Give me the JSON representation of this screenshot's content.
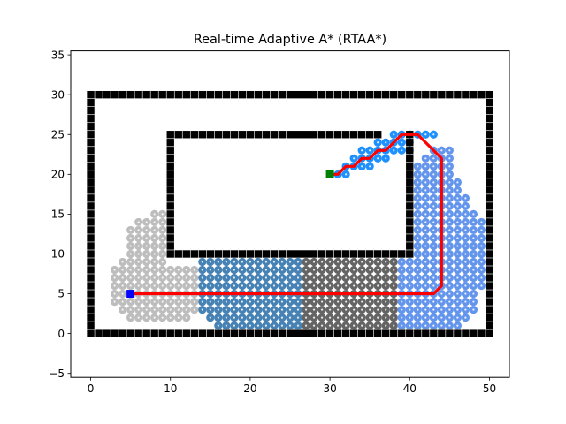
{
  "chart_data": {
    "type": "scatter",
    "title": "Real-time Adaptive A* (RTAA*)",
    "xlabel": "",
    "ylabel": "",
    "xlim": [
      -2.5,
      52.5
    ],
    "ylim": [
      -5.5,
      35.5
    ],
    "x_ticks": [
      0,
      10,
      20,
      30,
      40,
      50
    ],
    "y_ticks": [
      -5,
      0,
      5,
      10,
      15,
      20,
      25,
      30,
      35
    ],
    "grid": false,
    "legend": "none",
    "colors": {
      "obstacle": "#000000",
      "explored_gray": "#bdbdbd",
      "explored_steelblue": "#4682b4",
      "explored_dimgray": "#646464",
      "explored_cornflower": "#6495ed",
      "explored_dodger": "#1e90ff",
      "path": "#ff0000",
      "start": "#0000ff",
      "goal": "#008000"
    },
    "outer_wall": {
      "x_range": [
        0,
        50
      ],
      "y_range": [
        0,
        30
      ]
    },
    "inner_wall": {
      "x_range": [
        10,
        40
      ],
      "y_range": [
        10,
        25
      ],
      "gap_x": [
        37,
        39
      ]
    },
    "start": [
      5,
      5
    ],
    "goal": [
      30,
      20
    ],
    "path": [
      [
        5,
        5
      ],
      [
        43,
        5
      ],
      [
        44,
        6
      ],
      [
        44,
        22
      ],
      [
        42,
        24
      ],
      [
        41,
        25
      ],
      [
        39,
        25
      ],
      [
        37,
        23
      ],
      [
        36,
        23
      ],
      [
        35,
        22
      ],
      [
        34,
        22
      ],
      [
        33,
        21
      ],
      [
        32,
        21
      ],
      [
        31,
        20
      ],
      [
        30,
        20
      ]
    ],
    "explored_regions": [
      {
        "name": "gray",
        "color": "#bdbdbd",
        "rows": [
          [
            2,
            5,
            12
          ],
          [
            3,
            4,
            13
          ],
          [
            4,
            3,
            13
          ],
          [
            5,
            3,
            13
          ],
          [
            6,
            3,
            13
          ],
          [
            7,
            3,
            13
          ],
          [
            8,
            3,
            13
          ],
          [
            9,
            4,
            9
          ],
          [
            10,
            5,
            9
          ],
          [
            11,
            5,
            9
          ],
          [
            12,
            5,
            9
          ],
          [
            13,
            5,
            9
          ],
          [
            14,
            6,
            9
          ],
          [
            15,
            8,
            9
          ]
        ]
      },
      {
        "name": "steelblue",
        "color": "#4682b4",
        "rows": [
          [
            1,
            16,
            26
          ],
          [
            2,
            15,
            26
          ],
          [
            3,
            14,
            26
          ],
          [
            4,
            14,
            26
          ],
          [
            5,
            14,
            26
          ],
          [
            6,
            14,
            26
          ],
          [
            7,
            14,
            26
          ],
          [
            8,
            14,
            26
          ],
          [
            9,
            14,
            26
          ]
        ]
      },
      {
        "name": "dimgray",
        "color": "#646464",
        "rows": [
          [
            1,
            27,
            38
          ],
          [
            2,
            27,
            38
          ],
          [
            3,
            27,
            38
          ],
          [
            4,
            27,
            38
          ],
          [
            5,
            27,
            38
          ],
          [
            6,
            27,
            38
          ],
          [
            7,
            27,
            38
          ],
          [
            8,
            27,
            38
          ],
          [
            9,
            27,
            38
          ]
        ]
      },
      {
        "name": "cornflower",
        "color": "#6495ed",
        "rows": [
          [
            1,
            39,
            46
          ],
          [
            2,
            39,
            47
          ],
          [
            3,
            39,
            48
          ],
          [
            4,
            39,
            48
          ],
          [
            5,
            39,
            48
          ],
          [
            6,
            39,
            49
          ],
          [
            7,
            39,
            49
          ],
          [
            8,
            39,
            49
          ],
          [
            9,
            39,
            49
          ],
          [
            10,
            41,
            49
          ],
          [
            11,
            41,
            49
          ],
          [
            12,
            41,
            49
          ],
          [
            13,
            41,
            49
          ],
          [
            14,
            41,
            49
          ],
          [
            15,
            41,
            48
          ],
          [
            16,
            41,
            47
          ],
          [
            17,
            41,
            47
          ],
          [
            18,
            41,
            46
          ],
          [
            19,
            41,
            46
          ],
          [
            20,
            41,
            45
          ],
          [
            21,
            41,
            45
          ],
          [
            22,
            42,
            45
          ],
          [
            23,
            43,
            45
          ]
        ]
      },
      {
        "name": "dodger",
        "color": "#1e90ff",
        "rows": [
          [
            20,
            31,
            32
          ],
          [
            21,
            32,
            35
          ],
          [
            22,
            33,
            37
          ],
          [
            23,
            34,
            40
          ],
          [
            24,
            36,
            40
          ],
          [
            25,
            38,
            43
          ]
        ]
      }
    ]
  }
}
